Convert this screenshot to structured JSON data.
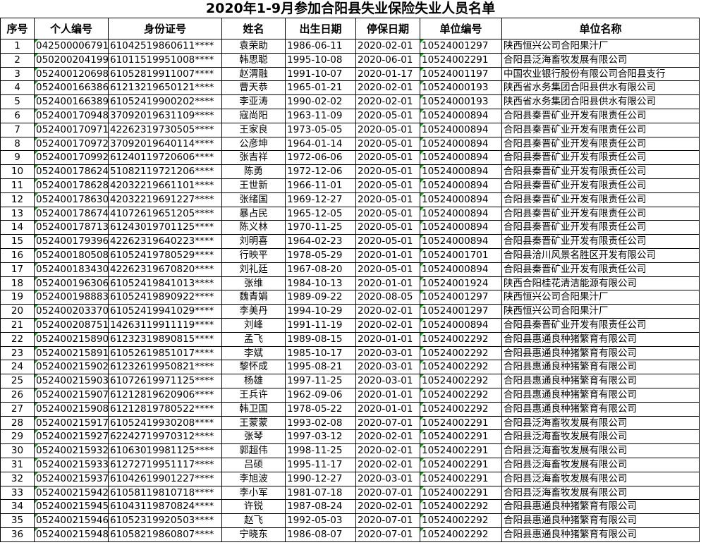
{
  "title": "2020年1-9月参加合阳县失业保险失业人员名单",
  "colors": {
    "grid": "#000000",
    "text_indicator": "#1a9a1a"
  },
  "columns": [
    "序号",
    "个人编号",
    "身份证号",
    "姓名",
    "出生日期",
    "停保日期",
    "单位编号",
    "单位名称"
  ],
  "rows": [
    [
      "1",
      "042500006791",
      "61042519860611****",
      "袁荣助",
      "1986-06-11",
      "2020-02-01",
      "10524001297",
      "陕西恒兴公司合阳果汁厂"
    ],
    [
      "2",
      "050200204199",
      "61011519951008****",
      "韩思聪",
      "1995-10-08",
      "2020-06-01",
      "10524002291",
      "合阳县泛海畜牧发展有限公司"
    ],
    [
      "3",
      "052400120698",
      "61052819911007****",
      "赵渭融",
      "1991-10-07",
      "2020-01-17",
      "10524001197",
      "中国农业银行股份有限公司合阳县支行"
    ],
    [
      "4",
      "052400166386",
      "61213219650121****",
      "曹天恭",
      "1965-01-21",
      "2020-02-01",
      "10524000193",
      "陕西省水务集团合阳县供水有限公司"
    ],
    [
      "5",
      "052400166389",
      "61052419900202****",
      "李亚涛",
      "1990-02-02",
      "2020-02-01",
      "10524000193",
      "陕西省水务集团合阳县供水有限公司"
    ],
    [
      "6",
      "052400170948",
      "37092019631109****",
      "寇尚阳",
      "1963-11-09",
      "2020-05-01",
      "10524000894",
      "合阳县秦晋矿业开发有限责任公司"
    ],
    [
      "7",
      "052400170971",
      "42262319730505****",
      "王家良",
      "1973-05-05",
      "2020-05-01",
      "10524000894",
      "合阳县秦晋矿业开发有限责任公司"
    ],
    [
      "8",
      "052400170972",
      "37092019640114****",
      "公彦坤",
      "1964-01-14",
      "2020-05-01",
      "10524000894",
      "合阳县秦晋矿业开发有限责任公司"
    ],
    [
      "9",
      "052400170992",
      "61240119720606****",
      "张吉祥",
      "1972-06-06",
      "2020-05-01",
      "10524000894",
      "合阳县秦晋矿业开发有限责任公司"
    ],
    [
      "10",
      "052400178624",
      "51082119721206****",
      "陈勇",
      "1972-12-06",
      "2020-05-01",
      "10524000894",
      "合阳县秦晋矿业开发有限责任公司"
    ],
    [
      "11",
      "052400178628",
      "42032219661101****",
      "王世新",
      "1966-11-01",
      "2020-05-01",
      "10524000894",
      "合阳县秦晋矿业开发有限责任公司"
    ],
    [
      "12",
      "052400178630",
      "42032219691227****",
      "张绪国",
      "1969-12-27",
      "2020-05-01",
      "10524000894",
      "合阳县秦晋矿业开发有限责任公司"
    ],
    [
      "13",
      "052400178674",
      "41072619651205****",
      "暴占民",
      "1965-12-05",
      "2020-05-01",
      "10524000894",
      "合阳县秦晋矿业开发有限责任公司"
    ],
    [
      "14",
      "052400178713",
      "61243019701125****",
      "陈义林",
      "1970-11-25",
      "2020-05-01",
      "10524000894",
      "合阳县秦晋矿业开发有限责任公司"
    ],
    [
      "15",
      "052400179396",
      "42262319640223****",
      "刘明喜",
      "1964-02-23",
      "2020-05-01",
      "10524000894",
      "合阳县秦晋矿业开发有限责任公司"
    ],
    [
      "16",
      "052400180508",
      "61052419780529****",
      "行映平",
      "1978-05-29",
      "2020-01-01",
      "10524001701",
      "合阳县洽川风景名胜区开发有限公司"
    ],
    [
      "17",
      "052400183430",
      "42262319670820****",
      "刘礼廷",
      "1967-08-20",
      "2020-05-01",
      "10524000894",
      "合阳县秦晋矿业开发有限责任公司"
    ],
    [
      "18",
      "052400196306",
      "61052419841013****",
      "张维",
      "1984-10-13",
      "2020-01-01",
      "10524001924",
      "陕西合阳桂花清洁能源有限公司"
    ],
    [
      "19",
      "052400198883",
      "61052419890922****",
      "魏青娟",
      "1989-09-22",
      "2020-08-05",
      "10524001297",
      "陕西恒兴公司合阳果汁厂"
    ],
    [
      "20",
      "052400203370",
      "61052419941029****",
      "李美丹",
      "1994-10-29",
      "2020-02-01",
      "10524001297",
      "陕西恒兴公司合阳果汁厂"
    ],
    [
      "21",
      "052400208751",
      "14263119911119****",
      "刘峰",
      "1991-11-19",
      "2020-02-01",
      "10524000894",
      "合阳县秦晋矿业开发有限责任公司"
    ],
    [
      "22",
      "052400215890",
      "61232319890815****",
      "孟飞",
      "1989-08-15",
      "2020-01-01",
      "10524002292",
      "合阳县惠通良种猪繁育有限公司"
    ],
    [
      "23",
      "052400215891",
      "61052619851017****",
      "李斌",
      "1985-10-17",
      "2020-03-01",
      "10524002292",
      "合阳县惠通良种猪繁育有限公司"
    ],
    [
      "24",
      "052400215902",
      "61232619950821****",
      "黎怀成",
      "1995-08-21",
      "2020-03-01",
      "10524002292",
      "合阳县惠通良种猪繁育有限公司"
    ],
    [
      "25",
      "052400215903",
      "61072619971125****",
      "杨雄",
      "1997-11-25",
      "2020-03-01",
      "10524002292",
      "合阳县惠通良种猪繁育有限公司"
    ],
    [
      "26",
      "052400215907",
      "61212819620906****",
      "王兵许",
      "1962-09-06",
      "2020-01-01",
      "10524002292",
      "合阳县惠通良种猪繁育有限公司"
    ],
    [
      "27",
      "052400215908",
      "61212819780522****",
      "韩卫国",
      "1978-05-22",
      "2020-01-01",
      "10524002292",
      "合阳县惠通良种猪繁育有限公司"
    ],
    [
      "28",
      "052400215917",
      "61052419930208****",
      "王蒙蒙",
      "1993-02-08",
      "2020-07-01",
      "10524002291",
      "合阳县泛海畜牧发展有限公司"
    ],
    [
      "29",
      "052400215927",
      "62242719970312****",
      "张琴",
      "1997-03-12",
      "2020-02-01",
      "10524002291",
      "合阳县泛海畜牧发展有限公司"
    ],
    [
      "30",
      "052400215932",
      "61063019981125****",
      "郭超伟",
      "1998-11-25",
      "2020-02-01",
      "10524002291",
      "合阳县泛海畜牧发展有限公司"
    ],
    [
      "31",
      "052400215933",
      "61272719951117****",
      "吕硕",
      "1995-11-17",
      "2020-02-01",
      "10524002291",
      "合阳县泛海畜牧发展有限公司"
    ],
    [
      "32",
      "052400215937",
      "61042619901227****",
      "李旭波",
      "1990-12-27",
      "2020-03-01",
      "10524002291",
      "合阳县泛海畜牧发展有限公司"
    ],
    [
      "33",
      "052400215942",
      "61058119810718****",
      "李小军",
      "1981-07-18",
      "2020-07-01",
      "10524002291",
      "合阳县泛海畜牧发展有限公司"
    ],
    [
      "34",
      "052400215945",
      "61043119870824****",
      "许锐",
      "1987-08-24",
      "2020-02-01",
      "10524002292",
      "合阳县惠通良种猪繁育有限公司"
    ],
    [
      "35",
      "052400215946",
      "61052319920503****",
      "赵飞",
      "1992-05-03",
      "2020-07-01",
      "10524002292",
      "合阳县惠通良种猪繁育有限公司"
    ],
    [
      "36",
      "052400215948",
      "61058219860807****",
      "宁晓东",
      "1986-08-07",
      "2020-07-01",
      "10524002292",
      "合阳县惠通良种猪繁育有限公司"
    ]
  ]
}
